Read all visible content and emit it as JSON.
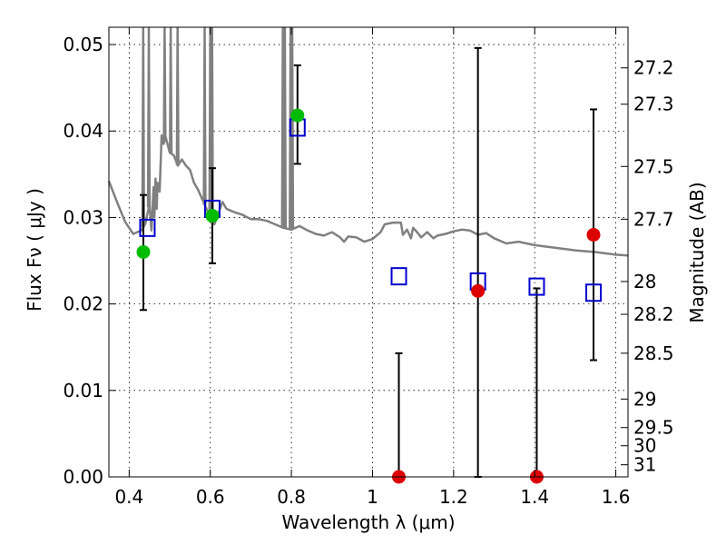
{
  "chart_data": {
    "type": "scatter",
    "xlabel": "Wavelength  λ (μm)",
    "ylabel": "Flux  Fν  ( μJy )",
    "ylabel_right": "Magnitude (AB)",
    "xlim": [
      0.35,
      1.63
    ],
    "ylim": [
      0.0,
      0.052
    ],
    "grid": true,
    "x_ticks": [
      0.4,
      0.6,
      0.8,
      1.0,
      1.2,
      1.4,
      1.6
    ],
    "x_tick_labels": [
      "0.4",
      "0.6",
      "0.8",
      "1",
      "1.2",
      "1.4",
      "1.6"
    ],
    "y_ticks": [
      0.0,
      0.01,
      0.02,
      0.03,
      0.04,
      0.05
    ],
    "y_tick_labels": [
      "0.00",
      "0.01",
      "0.02",
      "0.03",
      "0.04",
      "0.05"
    ],
    "right_ticks": [
      {
        "label": "27.2",
        "flux": 0.0473
      },
      {
        "label": "27.3",
        "flux": 0.0431
      },
      {
        "label": "27.5",
        "flux": 0.0359
      },
      {
        "label": "27.7",
        "flux": 0.0298
      },
      {
        "label": "28",
        "flux": 0.0226
      },
      {
        "label": "28.2",
        "flux": 0.0188
      },
      {
        "label": "28.5",
        "flux": 0.0143
      },
      {
        "label": "29",
        "flux": 0.009
      },
      {
        "label": "29.5",
        "flux": 0.0057
      },
      {
        "label": "30",
        "flux": 0.0036
      },
      {
        "label": "31",
        "flux": 0.0014
      }
    ],
    "model_spectrum": {
      "color": "#808080",
      "points": [
        [
          0.35,
          0.0342
        ],
        [
          0.37,
          0.0318
        ],
        [
          0.39,
          0.0295
        ],
        [
          0.41,
          0.0281
        ],
        [
          0.43,
          0.0285
        ],
        [
          0.44,
          0.0293
        ],
        [
          0.45,
          0.0315
        ],
        [
          0.455,
          0.0285
        ],
        [
          0.46,
          0.0335
        ],
        [
          0.462,
          0.03
        ],
        [
          0.465,
          0.0345
        ],
        [
          0.468,
          0.031
        ],
        [
          0.47,
          0.034
        ],
        [
          0.475,
          0.033
        ],
        [
          0.48,
          0.0395
        ],
        [
          0.485,
          0.0385
        ],
        [
          0.49,
          0.0393
        ],
        [
          0.5,
          0.0375
        ],
        [
          0.51,
          0.0372
        ],
        [
          0.52,
          0.036
        ],
        [
          0.53,
          0.0367
        ],
        [
          0.54,
          0.036
        ],
        [
          0.55,
          0.0355
        ],
        [
          0.56,
          0.034
        ],
        [
          0.57,
          0.0332
        ],
        [
          0.6,
          0.03
        ],
        [
          0.61,
          0.0292
        ],
        [
          0.63,
          0.0318
        ],
        [
          0.64,
          0.031
        ],
        [
          0.66,
          0.0306
        ],
        [
          0.68,
          0.0303
        ],
        [
          0.7,
          0.0298
        ],
        [
          0.72,
          0.0298
        ],
        [
          0.74,
          0.0296
        ],
        [
          0.76,
          0.0292
        ],
        [
          0.78,
          0.0288
        ],
        [
          0.8,
          0.0286
        ],
        [
          0.82,
          0.029
        ],
        [
          0.84,
          0.0285
        ],
        [
          0.86,
          0.0281
        ],
        [
          0.88,
          0.0279
        ],
        [
          0.9,
          0.0283
        ],
        [
          0.92,
          0.0277
        ],
        [
          0.93,
          0.0272
        ],
        [
          0.94,
          0.0278
        ],
        [
          0.96,
          0.0277
        ],
        [
          0.98,
          0.0272
        ],
        [
          1.0,
          0.0275
        ],
        [
          1.02,
          0.0283
        ],
        [
          1.03,
          0.0292
        ],
        [
          1.05,
          0.0294
        ],
        [
          1.07,
          0.0294
        ],
        [
          1.075,
          0.028
        ],
        [
          1.085,
          0.0286
        ],
        [
          1.095,
          0.0276
        ],
        [
          1.1,
          0.0288
        ],
        [
          1.11,
          0.0283
        ],
        [
          1.12,
          0.0277
        ],
        [
          1.135,
          0.0283
        ],
        [
          1.15,
          0.0276
        ],
        [
          1.16,
          0.0279
        ],
        [
          1.18,
          0.0281
        ],
        [
          1.2,
          0.0284
        ],
        [
          1.22,
          0.0286
        ],
        [
          1.24,
          0.0285
        ],
        [
          1.26,
          0.028
        ],
        [
          1.28,
          0.0282
        ],
        [
          1.3,
          0.0276
        ],
        [
          1.33,
          0.027
        ],
        [
          1.36,
          0.0272
        ],
        [
          1.4,
          0.0268
        ],
        [
          1.45,
          0.0265
        ],
        [
          1.5,
          0.0262
        ],
        [
          1.55,
          0.026
        ],
        [
          1.6,
          0.0257
        ],
        [
          1.63,
          0.0256
        ]
      ],
      "emission_lines": [
        {
          "x": 0.4345,
          "peak": 0.052
        },
        {
          "x": 0.4485,
          "peak": 0.052
        },
        {
          "x": 0.4875,
          "peak": 0.052
        },
        {
          "x": 0.5025,
          "peak": 0.052
        },
        {
          "x": 0.5195,
          "peak": 0.052
        },
        {
          "x": 0.586,
          "peak": 0.052
        },
        {
          "x": 0.6,
          "peak": 0.052
        },
        {
          "x": 0.6045,
          "peak": 0.052
        },
        {
          "x": 0.779,
          "peak": 0.052
        },
        {
          "x": 0.784,
          "peak": 0.052
        },
        {
          "x": 0.798,
          "peak": 0.052
        },
        {
          "x": 0.802,
          "peak": 0.052
        }
      ]
    },
    "model_photometry": {
      "color": "#0000cc",
      "points": [
        [
          0.445,
          0.0288
        ],
        [
          0.605,
          0.031
        ],
        [
          0.815,
          0.0404
        ],
        [
          1.065,
          0.0232
        ],
        [
          1.26,
          0.0226
        ],
        [
          1.405,
          0.022
        ],
        [
          1.545,
          0.0213
        ]
      ]
    },
    "observed": [
      {
        "x": 0.435,
        "y": 0.026,
        "yerr_low": 0.0193,
        "yerr_high": 0.0326,
        "color": "#00bb00"
      },
      {
        "x": 0.605,
        "y": 0.0302,
        "yerr_low": 0.0247,
        "yerr_high": 0.0357,
        "color": "#00bb00"
      },
      {
        "x": 0.815,
        "y": 0.0418,
        "yerr_low": 0.0362,
        "yerr_high": 0.0476,
        "color": "#00bb00"
      },
      {
        "x": 1.065,
        "y": 0.0,
        "yerr_low": 0.0,
        "yerr_high": 0.0143,
        "color": "#dd0000"
      },
      {
        "x": 1.26,
        "y": 0.0215,
        "yerr_low": 0.0,
        "yerr_high": 0.0496,
        "color": "#dd0000"
      },
      {
        "x": 1.405,
        "y": 0.0,
        "yerr_low": 0.0,
        "yerr_high": 0.0218,
        "color": "#dd0000"
      },
      {
        "x": 1.545,
        "y": 0.028,
        "yerr_low": 0.0135,
        "yerr_high": 0.0425,
        "color": "#dd0000"
      }
    ]
  }
}
